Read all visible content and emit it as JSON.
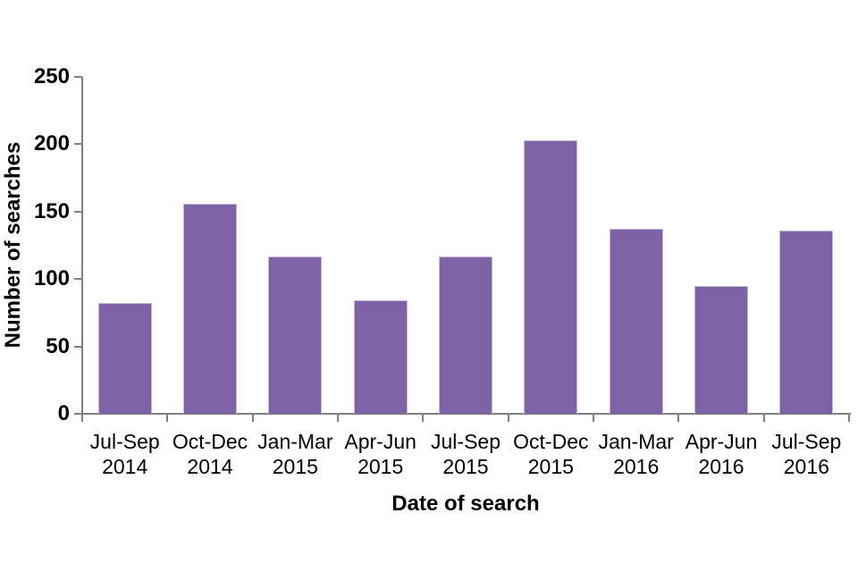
{
  "chart_data": {
    "type": "bar",
    "title": "",
    "categories": [
      "Jul-Sep 2014",
      "Oct-Dec 2014",
      "Jan-Mar 2015",
      "Apr-Jun 2015",
      "Jul-Sep 2015",
      "Oct-Dec 2015",
      "Jan-Mar 2016",
      "Apr-Jun 2016",
      "Jul-Sep 2016"
    ],
    "values": [
      82,
      156,
      117,
      84,
      117,
      203,
      137,
      95,
      136
    ],
    "xlabel": "Date of search",
    "ylabel": "Number of searches",
    "ylim": [
      0,
      250
    ],
    "yticks": [
      0,
      50,
      100,
      150,
      200,
      250
    ],
    "grid": "off",
    "legend": "none",
    "bar_color": "#7d63a6",
    "bar_border_color": "#c4b7da",
    "axis_color": "#808080",
    "text_color": "#000000",
    "background_color": "#ffffff"
  }
}
